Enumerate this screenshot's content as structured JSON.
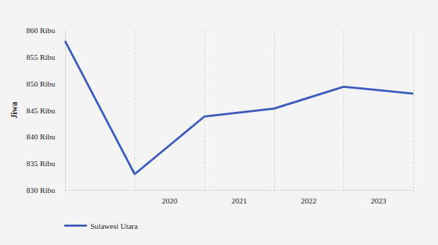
{
  "chart_data": {
    "type": "line",
    "y_label": "Jiwa",
    "categories": [
      null,
      "2020",
      "2021",
      "2022",
      "2023",
      null
    ],
    "series": [
      {
        "name": "Sulawesi Utara",
        "color": "#3d5cbe",
        "values": [
          858.0,
          833.0,
          843.8,
          845.3,
          849.4,
          848.1
        ]
      }
    ],
    "ylim": [
      830,
      860
    ],
    "yticks": [
      {
        "value": 830,
        "label": "830 Ribu"
      },
      {
        "value": 835,
        "label": "835 Ribu"
      },
      {
        "value": 840,
        "label": "840 Ribu"
      },
      {
        "value": 845,
        "label": "845 Ribu"
      },
      {
        "value": 850,
        "label": "850 Ribu"
      },
      {
        "value": 855,
        "label": "855 Ribu"
      },
      {
        "value": 860,
        "label": "860 Ribu"
      }
    ],
    "grid": true,
    "legend": "bottom-left"
  }
}
